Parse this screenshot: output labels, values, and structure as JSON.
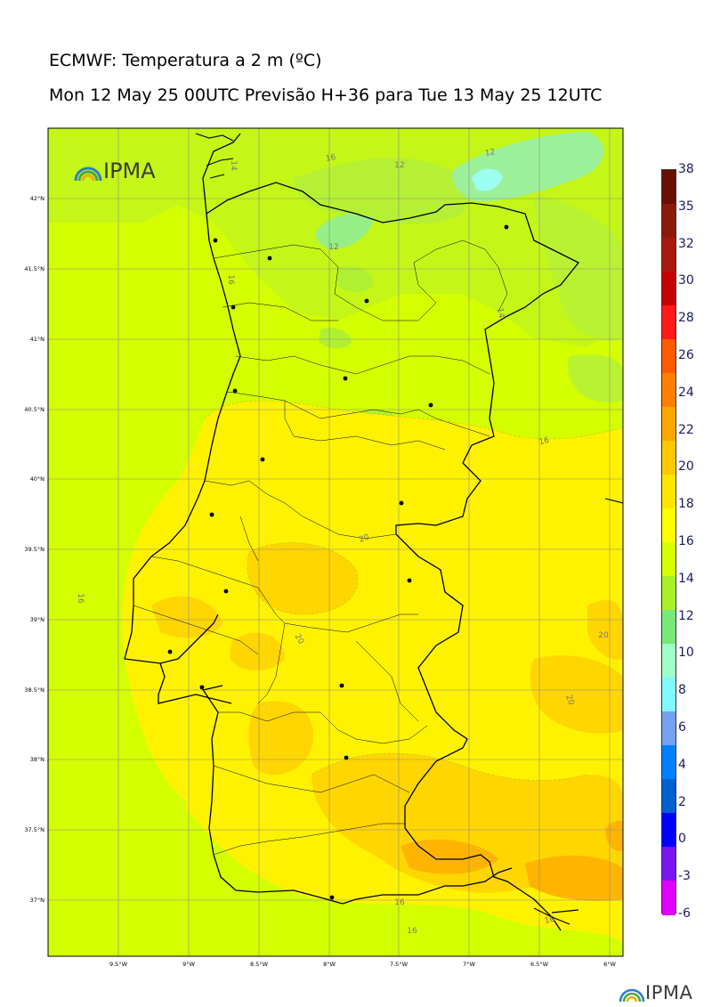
{
  "header": {
    "title_line1": "ECMWF: Temperatura a 2 m (ºC)",
    "title_line2": "Mon 12 May 25 00UTC Previsão H+36 para Tue 13 May 25 12UTC"
  },
  "logo": {
    "text": "IPMA"
  },
  "axes": {
    "lon_ticks": [
      "9.5°W",
      "9°W",
      "8.5°W",
      "8°W",
      "7.5°W",
      "7°W",
      "6.5°W",
      "6°W"
    ],
    "lat_ticks": [
      "42°N",
      "41.5°N",
      "41°N",
      "40.5°N",
      "40°N",
      "39.5°N",
      "39°N",
      "38.5°N",
      "38°N",
      "37.5°N",
      "37°N"
    ]
  },
  "colorbar": {
    "labels": [
      "38",
      "35",
      "32",
      "30",
      "28",
      "26",
      "24",
      "22",
      "20",
      "18",
      "16",
      "14",
      "12",
      "10",
      "8",
      "6",
      "4",
      "2",
      "0",
      "-3",
      "-6"
    ],
    "colors": [
      "#6b1000",
      "#8b1a0a",
      "#a81a0e",
      "#c80000",
      "#ff1a1a",
      "#ff5a00",
      "#ff8000",
      "#ffa500",
      "#ffc800",
      "#ffe600",
      "#ffff00",
      "#d8ff00",
      "#a8f028",
      "#78e878",
      "#a0ffc8",
      "#80f8ff",
      "#78a0f0",
      "#0080ff",
      "#0060d0",
      "#0000ff",
      "#7a14f0",
      "#e000ff"
    ]
  },
  "contour_labels": [
    "16",
    "12",
    "12",
    "12",
    "14",
    "16",
    "14",
    "16",
    "16",
    "20",
    "20",
    "20",
    "20",
    "16",
    "16",
    "16",
    "16"
  ],
  "colors": {
    "bg_green": "#d4ff00",
    "yellow": "#fff200",
    "orange_light": "#ffd600",
    "orange": "#ffb400",
    "cyan_green": "#9af08a"
  }
}
